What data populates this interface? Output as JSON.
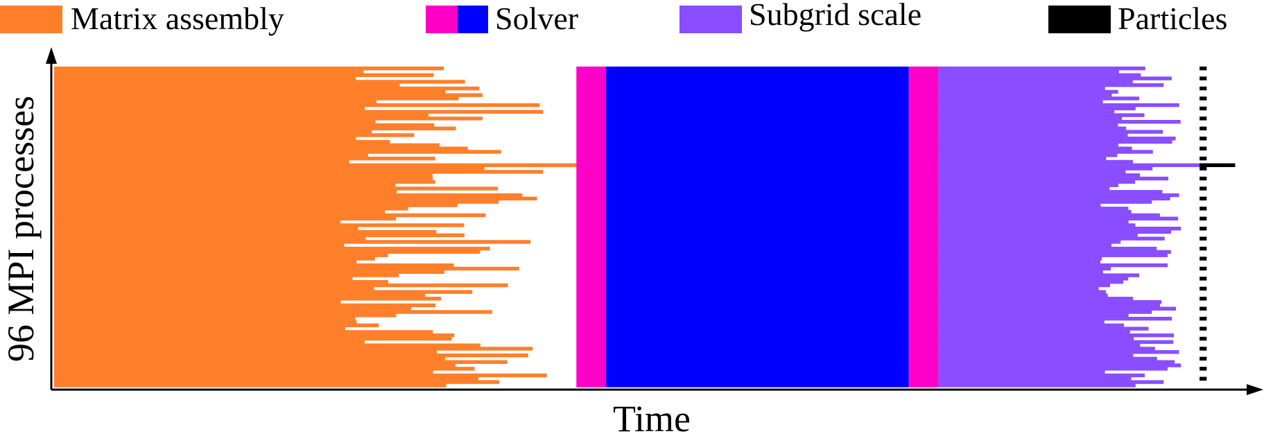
{
  "chart_data": {
    "type": "timeline",
    "title": "",
    "xlabel": "Time",
    "ylabel": "96 MPI processes",
    "process_count": 96,
    "legend": [
      {
        "label": "Matrix assembly",
        "colors": [
          "#ff7f2a"
        ]
      },
      {
        "label": "Solver",
        "colors": [
          "#ff00c8",
          "#0000ff"
        ]
      },
      {
        "label": "Subgrid scale",
        "colors": [
          "#8a4dff"
        ]
      },
      {
        "label": "Particles",
        "colors": [
          "#000000"
        ]
      }
    ],
    "phases": [
      {
        "name": "Matrix assembly",
        "color": "#ff7f2a",
        "start": 0.0,
        "end_min": 0.24,
        "end_max": 0.42
      },
      {
        "name": "Solver (preconditioner)",
        "color": "#ff00c8",
        "start": 0.44,
        "end": 0.465
      },
      {
        "name": "Solver (iterations)",
        "color": "#0000ff",
        "start": 0.465,
        "end": 0.72
      },
      {
        "name": "Solver (preconditioner)",
        "color": "#ff00c8",
        "start": 0.72,
        "end": 0.745
      },
      {
        "name": "Subgrid scale",
        "color": "#8a4dff",
        "start": 0.745,
        "end_min": 0.88,
        "end_max": 0.95
      },
      {
        "name": "Particles",
        "color": "#000000",
        "start": 0.965,
        "end": 0.995
      }
    ],
    "outlier_process": 29,
    "grid": false
  }
}
